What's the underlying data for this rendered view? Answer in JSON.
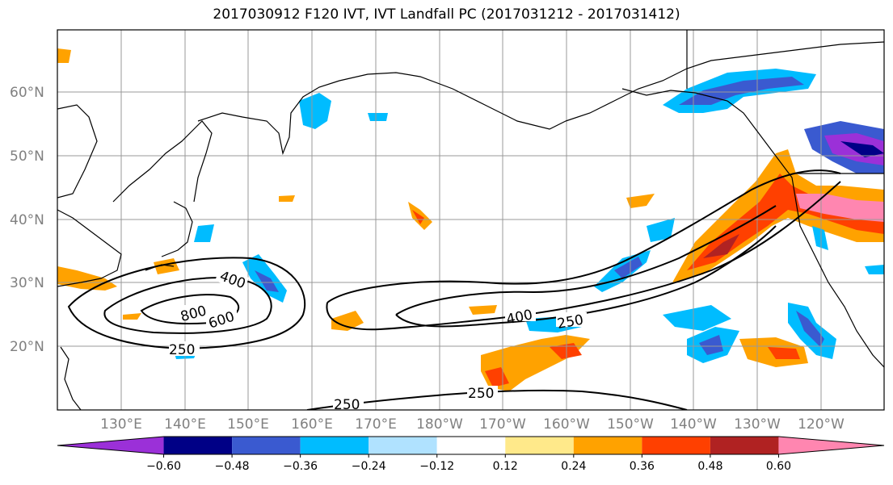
{
  "title": "2017030912 F120 IVT, IVT Landfall PC (2017031212 - 2017031412)",
  "lat_labels": [
    "60°N",
    "50°N",
    "40°N",
    "30°N",
    "20°N"
  ],
  "lon_labels": [
    "130°E",
    "140°E",
    "150°E",
    "160°E",
    "170°E",
    "180°W",
    "170°W",
    "160°W",
    "150°W",
    "140°W",
    "130°W",
    "120°W"
  ],
  "colorbar": {
    "colors": [
      "#9b30d8",
      "#000086",
      "#3a5ad0",
      "#00bcff",
      "#b0e2ff",
      "#ffffff",
      "#ffe98a",
      "#ffa200",
      "#ff4000",
      "#b02222",
      "#ff86b0"
    ],
    "tick_labels": [
      "-0.60",
      "-0.48",
      "-0.36",
      "-0.24",
      "-0.12",
      "0.12",
      "0.24",
      "0.36",
      "0.48",
      "0.60"
    ]
  },
  "contour_labels": [
    "400",
    "800",
    "600",
    "250",
    "400",
    "250",
    "250",
    "250"
  ],
  "colors": {
    "grid": "#999999",
    "coast": "#000000",
    "contour": "#000000"
  }
}
